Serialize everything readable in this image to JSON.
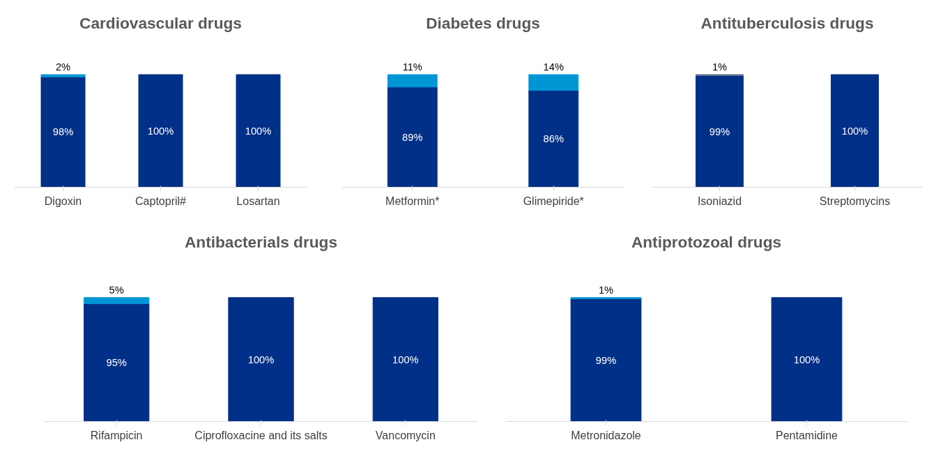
{
  "chart_data": [
    {
      "type": "bar",
      "stacked": true,
      "title": "Cardiovascular drugs",
      "categories": [
        "Digoxin",
        "Captopril#",
        "Losartan"
      ],
      "series": [
        {
          "color": "#003087",
          "values": [
            98,
            100,
            100
          ],
          "value_labels": [
            "98%",
            "100%",
            "100%"
          ]
        },
        {
          "color": "#0096d6",
          "values": [
            2,
            null,
            null
          ],
          "value_labels": [
            "2%",
            null,
            null
          ]
        }
      ],
      "grid": false,
      "tick_labels": "x"
    },
    {
      "type": "bar",
      "stacked": true,
      "title": "Diabetes drugs",
      "categories": [
        "Metformin*",
        "Glimepiride*"
      ],
      "series": [
        {
          "color": "#003087",
          "values": [
            89,
            86
          ],
          "value_labels": [
            "89%",
            "86%"
          ]
        },
        {
          "color": "#0096d6",
          "values": [
            11,
            14
          ],
          "value_labels": [
            "11%",
            "14%"
          ]
        }
      ],
      "grid": false,
      "tick_labels": "x"
    },
    {
      "type": "bar",
      "stacked": true,
      "title": "Antituberculosis drugs",
      "categories": [
        "Isoniazid",
        "Streptomycins"
      ],
      "series": [
        {
          "color": "#003087",
          "values": [
            99,
            100
          ],
          "value_labels": [
            "99%",
            "100%"
          ]
        },
        {
          "color": "#5a6b8c",
          "values": [
            1,
            null
          ],
          "value_labels": [
            "1%",
            null
          ]
        }
      ],
      "grid": false,
      "tick_labels": "x"
    },
    {
      "type": "bar",
      "stacked": true,
      "title": "Antibacterials drugs",
      "categories": [
        "Rifampicin",
        "Ciprofloxacine and its salts",
        "Vancomycin"
      ],
      "series": [
        {
          "color": "#003087",
          "values": [
            95,
            100,
            100
          ],
          "value_labels": [
            "95%",
            "100%",
            "100%"
          ]
        },
        {
          "color": "#0096d6",
          "values": [
            5,
            null,
            null
          ],
          "value_labels": [
            "5%",
            null,
            null
          ]
        }
      ],
      "grid": false,
      "tick_labels": "x"
    },
    {
      "type": "bar",
      "stacked": true,
      "title": "Antiprotozoal drugs",
      "categories": [
        "Metronidazole",
        "Pentamidine"
      ],
      "series": [
        {
          "color": "#003087",
          "values": [
            99,
            100
          ],
          "value_labels": [
            "99%",
            "100%"
          ]
        },
        {
          "color": "#0096d6",
          "values": [
            1,
            null
          ],
          "value_labels": [
            "1%",
            null
          ]
        }
      ],
      "grid": false,
      "tick_labels": "x"
    }
  ]
}
